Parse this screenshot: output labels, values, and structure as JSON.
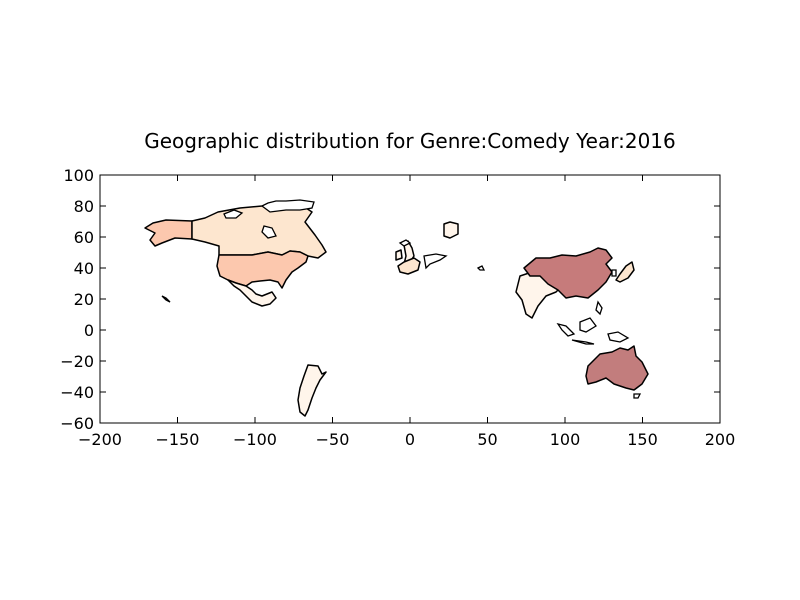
{
  "chart_data": {
    "type": "choropleth",
    "title": "Geographic distribution for Genre:Comedy Year:2016",
    "xlabel": "",
    "ylabel": "",
    "xlim": [
      -200,
      200
    ],
    "ylim": [
      -60,
      100
    ],
    "xticks": [
      "−200",
      "−150",
      "−100",
      "−50",
      "0",
      "50",
      "100",
      "150",
      "200"
    ],
    "yticks": [
      "100",
      "80",
      "60",
      "40",
      "20",
      "0",
      "−20",
      "−40",
      "−60"
    ],
    "grid": false,
    "colors": {
      "zero": "#fff5eb",
      "low": "#fde6cf",
      "mid": "#fcc8ae",
      "high": "#c67b7b",
      "highest": "#c27d7d"
    },
    "regions": [
      {
        "name": "United States",
        "level": "mid"
      },
      {
        "name": "Alaska",
        "level": "mid"
      },
      {
        "name": "Canada",
        "level": "low"
      },
      {
        "name": "Mexico",
        "level": "zero"
      },
      {
        "name": "Argentina",
        "level": "zero"
      },
      {
        "name": "United Kingdom",
        "level": "zero"
      },
      {
        "name": "Ireland",
        "level": "zero"
      },
      {
        "name": "France",
        "level": "low"
      },
      {
        "name": "Norway",
        "level": "zero"
      },
      {
        "name": "India",
        "level": "zero"
      },
      {
        "name": "China",
        "level": "high"
      },
      {
        "name": "Japan",
        "level": "low"
      },
      {
        "name": "Australia",
        "level": "highest"
      }
    ]
  }
}
